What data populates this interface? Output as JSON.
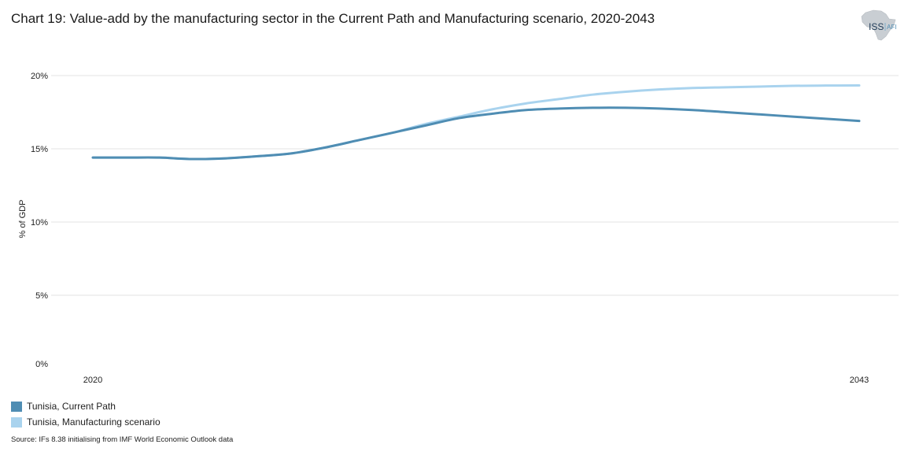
{
  "title": "Chart 19: Value-add by the manufacturing sector in the Current Path and Manufacturing scenario, 2020-2043",
  "logo": {
    "text_main": "ISS",
    "text_sub": "AFI",
    "icon": "africa-map-icon"
  },
  "source": "Source: IFs 8.38 initialising from IMF World Economic Outlook data",
  "colors": {
    "current_path": "#4f8db3",
    "manufacturing": "#a9d3ee",
    "grid": "#e3e3e3"
  },
  "chart_data": {
    "type": "line",
    "ylabel": "% of GDP",
    "ylim": [
      0,
      20
    ],
    "yticks": [
      {
        "value": 0,
        "label": "0%"
      },
      {
        "value": 5,
        "label": "5%"
      },
      {
        "value": 10,
        "label": "10%"
      },
      {
        "value": 15,
        "label": "15%"
      },
      {
        "value": 20,
        "label": "20%"
      }
    ],
    "xlim": [
      2020,
      2043
    ],
    "xticks": [
      {
        "value": 2020,
        "label": "2020"
      },
      {
        "value": 2043,
        "label": "2043"
      }
    ],
    "grid": true,
    "legend_position": "bottom-left",
    "x": [
      2020,
      2021,
      2022,
      2023,
      2024,
      2025,
      2026,
      2027,
      2028,
      2029,
      2030,
      2031,
      2032,
      2033,
      2034,
      2035,
      2036,
      2037,
      2038,
      2039,
      2040,
      2041,
      2042,
      2043
    ],
    "series": [
      {
        "name": "Tunisia, Current Path",
        "color": "#4f8db3",
        "values": [
          14.4,
          14.4,
          14.4,
          14.3,
          14.35,
          14.5,
          14.7,
          15.1,
          15.6,
          16.1,
          16.6,
          17.1,
          17.4,
          17.65,
          17.75,
          17.8,
          17.8,
          17.75,
          17.65,
          17.5,
          17.35,
          17.2,
          17.05,
          16.9
        ]
      },
      {
        "name": "Tunisia, Manufacturing scenario",
        "color": "#a9d3ee",
        "values": [
          14.4,
          14.4,
          14.4,
          14.3,
          14.35,
          14.5,
          14.7,
          15.1,
          15.6,
          16.1,
          16.7,
          17.2,
          17.7,
          18.1,
          18.4,
          18.7,
          18.9,
          19.05,
          19.15,
          19.2,
          19.25,
          19.3,
          19.32,
          19.33
        ]
      }
    ]
  }
}
